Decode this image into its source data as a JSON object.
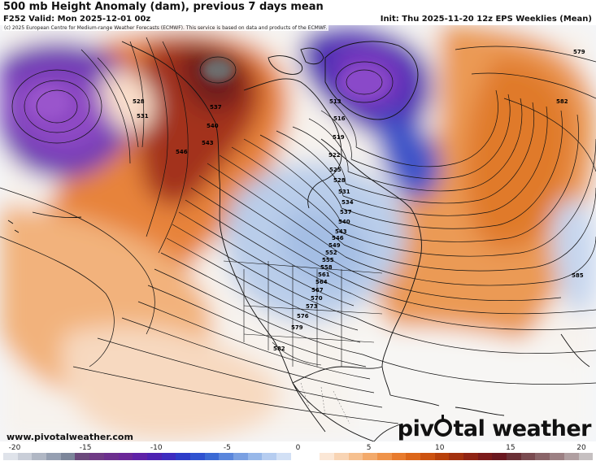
{
  "header": {
    "title": "500 mb Height Anomaly (dam), previous 7 days mean",
    "valid": "F252 Valid: Mon 2025-12-01 00z",
    "init": "Init: Thu 2025-11-20 12z EPS Weeklies (Mean)"
  },
  "copyright": "(c) 2025 European Centre for Medium-range Weather Forecasts (ECMWF). This service is based on data and products of the ECMWF.",
  "footer": {
    "website": "www.pivotalweather.com",
    "brand_left": "piv",
    "brand_right": "tal weather"
  },
  "contour_labels": [
    "513",
    "516",
    "519",
    "522",
    "525",
    "528",
    "531",
    "534",
    "537",
    "540",
    "543",
    "546",
    "549",
    "552",
    "555",
    "558",
    "561",
    "564",
    "567",
    "570",
    "573",
    "576",
    "579",
    "582",
    "585",
    "528",
    "531",
    "537",
    "540",
    "543",
    "546",
    "579",
    "582"
  ],
  "colorbar": {
    "ticks": [
      "-20",
      "-15",
      "-10",
      "-5",
      "0",
      "5",
      "10",
      "15",
      "20"
    ],
    "colors": [
      "#dfe3ea",
      "#c9ced8",
      "#b0b7c4",
      "#959fb1",
      "#7c869a",
      "#6b4a7c",
      "#6f3a85",
      "#6c2f8e",
      "#6b2798",
      "#5f22a7",
      "#4d22b2",
      "#3d2cbf",
      "#2d3cc8",
      "#2f52d0",
      "#3b6ad4",
      "#5a86dc",
      "#7aa0e2",
      "#98b8e9",
      "#b6cdf0",
      "#d2e0f5",
      "#ffffff",
      "#ffffff",
      "#fbe7d6",
      "#f8d4b4",
      "#f6c08f",
      "#f3aa6b",
      "#ef9349",
      "#e87b2d",
      "#dc6619",
      "#cc520f",
      "#b8400a",
      "#a3310e",
      "#8f2414",
      "#7b1a1a",
      "#6a1820",
      "#6b3036",
      "#7a4b50",
      "#8a6468",
      "#9c8083",
      "#b09fa1",
      "#c6c0c1"
    ]
  }
}
